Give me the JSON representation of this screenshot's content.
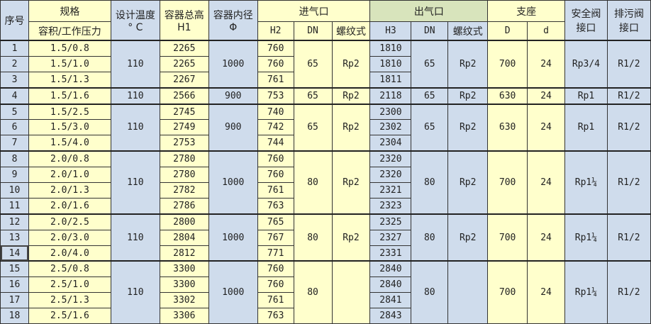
{
  "colors": {
    "yellow": "#ffffcc",
    "blue": "#cfdcec",
    "green": "#d8e4bc"
  },
  "header": {
    "seq": "序号",
    "spec": "规格",
    "spec_sub": "容积/工作压力",
    "temp": "设计温度",
    "temp_sub": "° C",
    "height": "容器总高",
    "height_sub": "H1",
    "diameter": "容器内径",
    "diameter_sub": "Φ",
    "inlet": "进气口",
    "inlet_h": "H2",
    "inlet_dn": "DN",
    "inlet_thread": "螺纹式",
    "outlet": "出气口",
    "outlet_h": "H3",
    "outlet_dn": "DN",
    "outlet_thread": "螺纹式",
    "support": "支座",
    "support_D": "D",
    "support_d": "d",
    "safety_valve": "安全阀接口",
    "drain_valve": "排污阀接口"
  },
  "groups": [
    {
      "rows": [
        {
          "seq": "1",
          "spec": "1.5/0.8",
          "h1": "2265",
          "h2": "760",
          "h3": "1810"
        },
        {
          "seq": "2",
          "spec": "1.5/1.0",
          "h1": "2265",
          "h2": "760",
          "h3": "1810"
        },
        {
          "seq": "3",
          "spec": "1.5/1.3",
          "h1": "2267",
          "h2": "761",
          "h3": "1811"
        }
      ],
      "temp": "110",
      "diameter": "1000",
      "in_dn": "65",
      "in_thread": "Rp2",
      "out_dn": "65",
      "out_thread": "Rp2",
      "D": "700",
      "d": "24",
      "safety": "Rp3/4",
      "drain": "R1/2"
    },
    {
      "rows": [
        {
          "seq": "4",
          "spec": "1.5/1.6",
          "h1": "2566",
          "h2": "753",
          "h3": "2118"
        }
      ],
      "temp": "110",
      "diameter": "900",
      "in_dn": "65",
      "in_thread": "Rp2",
      "out_dn": "65",
      "out_thread": "Rp2",
      "D": "630",
      "d": "24",
      "safety": "Rp1",
      "drain": "R1/2"
    },
    {
      "rows": [
        {
          "seq": "5",
          "spec": "1.5/2.5",
          "h1": "2745",
          "h2": "740",
          "h3": "2300"
        },
        {
          "seq": "6",
          "spec": "1.5/3.0",
          "h1": "2749",
          "h2": "742",
          "h3": "2302"
        },
        {
          "seq": "7",
          "spec": "1.5/4.0",
          "h1": "2753",
          "h2": "744",
          "h3": "2304"
        }
      ],
      "temp": "110",
      "diameter": "900",
      "in_dn": "65",
      "in_thread": "Rp2",
      "out_dn": "65",
      "out_thread": "Rp2",
      "D": "630",
      "d": "24",
      "safety": "Rp1",
      "drain": "R1/2"
    },
    {
      "rows": [
        {
          "seq": "8",
          "spec": "2.0/0.8",
          "h1": "2780",
          "h2": "760",
          "h3": "2320"
        },
        {
          "seq": "9",
          "spec": "2.0/1.0",
          "h1": "2780",
          "h2": "760",
          "h3": "2320"
        },
        {
          "seq": "10",
          "spec": "2.0/1.3",
          "h1": "2782",
          "h2": "761",
          "h3": "2321"
        },
        {
          "seq": "11",
          "spec": "2.0/1.6",
          "h1": "2786",
          "h2": "763",
          "h3": "2323"
        }
      ],
      "temp": "110",
      "diameter": "1000",
      "in_dn": "80",
      "in_thread": "Rp2",
      "out_dn": "80",
      "out_thread": "Rp2",
      "D": "700",
      "d": "24",
      "safety": "Rp1¼",
      "drain": "R1/2"
    },
    {
      "rows": [
        {
          "seq": "12",
          "spec": "2.0/2.5",
          "h1": "2800",
          "h2": "765",
          "h3": "2325"
        },
        {
          "seq": "13",
          "spec": "2.0/3.0",
          "h1": "2804",
          "h2": "767",
          "h3": "2327"
        },
        {
          "seq": "14",
          "spec": "2.0/4.0",
          "h1": "2812",
          "h2": "771",
          "h3": "2331"
        }
      ],
      "temp": "110",
      "diameter": "1000",
      "in_dn": "80",
      "in_thread": "Rp2",
      "out_dn": "80",
      "out_thread": "Rp2",
      "D": "700",
      "d": "24",
      "safety": "Rp1¼",
      "drain": "R1/2"
    },
    {
      "rows": [
        {
          "seq": "15",
          "spec": "2.5/0.8",
          "h1": "3300",
          "h2": "760",
          "h3": "2840"
        },
        {
          "seq": "16",
          "spec": "2.5/1.0",
          "h1": "3300",
          "h2": "760",
          "h3": "2840"
        },
        {
          "seq": "17",
          "spec": "2.5/1.3",
          "h1": "3302",
          "h2": "761",
          "h3": "2841"
        },
        {
          "seq": "18",
          "spec": "2.5/1.6",
          "h1": "3306",
          "h2": "763",
          "h3": "2843"
        }
      ],
      "temp": "110",
      "diameter": "1000",
      "in_dn": "80",
      "in_thread": "",
      "out_dn": "80",
      "out_thread": "",
      "D": "700",
      "d": "24",
      "safety": "Rp1¼",
      "drain": "R1/2"
    }
  ],
  "selected_cell": "14"
}
